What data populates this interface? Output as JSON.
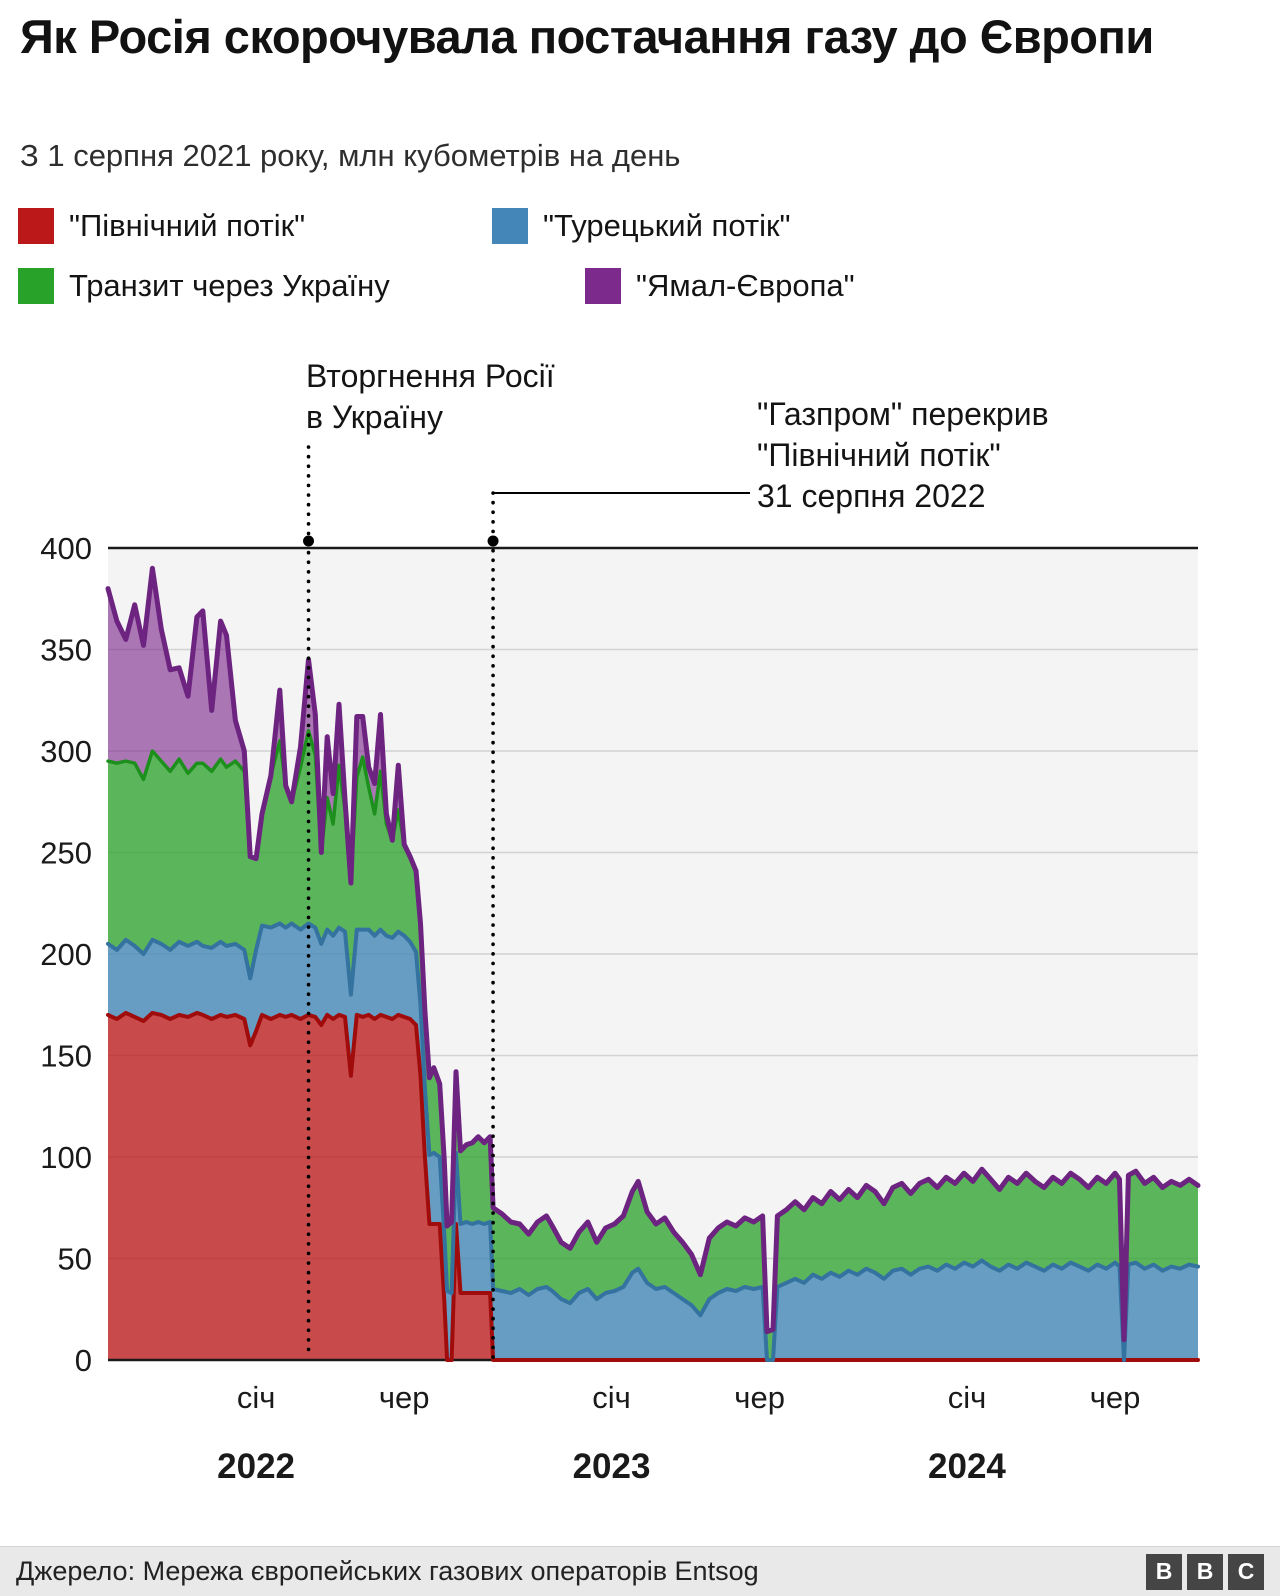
{
  "title": "Як Росія скорочувала постачання газу до Європи",
  "subtitle": "З 1 серпня 2021 року, млн кубометрів на день",
  "legend": [
    {
      "label": "\"Північний потік\"",
      "color": "#bb1919"
    },
    {
      "label": "\"Турецький потік\"",
      "color": "#4486b7"
    },
    {
      "label": "Транзит через Україну",
      "color": "#28a228"
    },
    {
      "label": "\"Ямал-Європа\"",
      "color": "#7c2a8c"
    }
  ],
  "annotations": {
    "invasion": {
      "line1": "Вторгнення Росії",
      "line2": "в Україну",
      "x_month": 6.77
    },
    "gazprom": {
      "line1": "\"Газпром\" перекрив",
      "line2": "\"Північний потік\"",
      "line3": "31 серпня 2022",
      "x_month": 13.0
    }
  },
  "footer": {
    "source": "Джерело: Мережа європейських газових операторів Entsog",
    "logo_letters": [
      "B",
      "B",
      "C"
    ]
  },
  "chart_data": {
    "type": "area",
    "stacked": true,
    "title": "Як Росія скорочувала постачання газу до Європи",
    "ylabel": "млн кубометрів на день",
    "x_unit": "months since 2021-08-01",
    "x_domain": [
      0,
      36.8
    ],
    "ylim": [
      0,
      400
    ],
    "y_ticks": [
      0,
      50,
      100,
      150,
      200,
      250,
      300,
      350,
      400
    ],
    "x_ticks": [
      {
        "label": "січ",
        "month": 5
      },
      {
        "label": "чер",
        "month": 10
      },
      {
        "label": "січ",
        "month": 17
      },
      {
        "label": "чер",
        "month": 22
      },
      {
        "label": "січ",
        "month": 29
      },
      {
        "label": "чер",
        "month": 34
      }
    ],
    "year_labels": [
      {
        "label": "2022",
        "month": 5
      },
      {
        "label": "2023",
        "month": 17
      },
      {
        "label": "2024",
        "month": 29
      }
    ],
    "grid": true,
    "legend_position": "top",
    "x": [
      0,
      0.3,
      0.6,
      0.9,
      1.2,
      1.5,
      1.8,
      2.1,
      2.4,
      2.7,
      3.0,
      3.2,
      3.5,
      3.8,
      4.0,
      4.3,
      4.6,
      4.8,
      5.0,
      5.2,
      5.5,
      5.8,
      6.0,
      6.2,
      6.5,
      6.77,
      7.0,
      7.2,
      7.4,
      7.6,
      7.8,
      8.0,
      8.2,
      8.4,
      8.6,
      8.8,
      9.0,
      9.2,
      9.4,
      9.6,
      9.8,
      10.0,
      10.2,
      10.4,
      10.55,
      10.7,
      10.85,
      11.0,
      11.2,
      11.35,
      11.45,
      11.6,
      11.75,
      11.9,
      12.1,
      12.3,
      12.5,
      12.7,
      12.9,
      13.0,
      13.3,
      13.6,
      13.9,
      14.2,
      14.5,
      14.8,
      15.0,
      15.3,
      15.6,
      15.9,
      16.2,
      16.5,
      16.8,
      17.1,
      17.4,
      17.7,
      17.9,
      18.2,
      18.5,
      18.8,
      19.1,
      19.4,
      19.7,
      20.0,
      20.3,
      20.6,
      20.9,
      21.2,
      21.5,
      21.8,
      22.1,
      22.25,
      22.45,
      22.6,
      22.9,
      23.2,
      23.5,
      23.8,
      24.1,
      24.4,
      24.7,
      25.0,
      25.3,
      25.6,
      25.9,
      26.2,
      26.5,
      26.8,
      27.1,
      27.4,
      27.7,
      28.0,
      28.3,
      28.6,
      28.9,
      29.2,
      29.5,
      29.8,
      30.1,
      30.4,
      30.7,
      31.0,
      31.3,
      31.6,
      31.9,
      32.2,
      32.5,
      32.8,
      33.1,
      33.4,
      33.7,
      34.0,
      34.15,
      34.3,
      34.45,
      34.7,
      35.0,
      35.3,
      35.6,
      35.9,
      36.2,
      36.5,
      36.8
    ],
    "series": [
      {
        "name": "\"Північний потік\"",
        "fill": "rgba(187,25,25,0.78)",
        "stroke": "#a00c0c",
        "stroke_width": 4,
        "values": [
          170,
          168,
          171,
          169,
          167,
          171,
          170,
          168,
          170,
          169,
          171,
          170,
          168,
          170,
          169,
          170,
          168,
          155,
          162,
          170,
          168,
          170,
          169,
          170,
          168,
          170,
          169,
          165,
          170,
          168,
          170,
          169,
          140,
          170,
          169,
          170,
          168,
          170,
          169,
          168,
          170,
          169,
          168,
          165,
          140,
          100,
          67,
          67,
          67,
          30,
          0,
          0,
          67,
          33,
          33,
          33,
          33,
          33,
          33,
          0,
          0,
          0,
          0,
          0,
          0,
          0,
          0,
          0,
          0,
          0,
          0,
          0,
          0,
          0,
          0,
          0,
          0,
          0,
          0,
          0,
          0,
          0,
          0,
          0,
          0,
          0,
          0,
          0,
          0,
          0,
          0,
          0,
          0,
          0,
          0,
          0,
          0,
          0,
          0,
          0,
          0,
          0,
          0,
          0,
          0,
          0,
          0,
          0,
          0,
          0,
          0,
          0,
          0,
          0,
          0,
          0,
          0,
          0,
          0,
          0,
          0,
          0,
          0,
          0,
          0,
          0,
          0,
          0,
          0,
          0,
          0,
          0,
          0,
          0,
          0,
          0,
          0,
          0,
          0,
          0,
          0,
          0,
          0
        ]
      },
      {
        "name": "\"Турецький потік\"",
        "fill": "rgba(68,134,183,0.8)",
        "stroke": "#34729f",
        "stroke_width": 4,
        "values": [
          35,
          34,
          36,
          35,
          33,
          36,
          35,
          34,
          36,
          35,
          35,
          34,
          35,
          36,
          35,
          35,
          34,
          33,
          40,
          44,
          45,
          45,
          44,
          45,
          44,
          45,
          44,
          40,
          42,
          41,
          43,
          42,
          40,
          42,
          43,
          42,
          41,
          42,
          40,
          40,
          41,
          40,
          38,
          36,
          35,
          34,
          34,
          35,
          33,
          33,
          34,
          33,
          35,
          34,
          35,
          34,
          35,
          34,
          35,
          35,
          34,
          33,
          35,
          32,
          35,
          36,
          34,
          30,
          28,
          33,
          35,
          30,
          33,
          34,
          36,
          43,
          45,
          38,
          35,
          36,
          33,
          30,
          27,
          22,
          30,
          33,
          35,
          34,
          36,
          35,
          36,
          0,
          0,
          36,
          38,
          40,
          38,
          42,
          40,
          43,
          41,
          44,
          42,
          45,
          43,
          40,
          44,
          45,
          42,
          45,
          46,
          44,
          47,
          45,
          48,
          46,
          49,
          46,
          44,
          47,
          45,
          48,
          46,
          44,
          47,
          45,
          48,
          46,
          44,
          47,
          45,
          48,
          46,
          0,
          47,
          48,
          45,
          47,
          44,
          46,
          45,
          47,
          46
        ]
      },
      {
        "name": "Транзит через Україну",
        "fill": "rgba(40,162,40,0.75)",
        "stroke": "#1d8f1d",
        "stroke_width": 3.5,
        "values": [
          90,
          92,
          88,
          90,
          86,
          93,
          90,
          88,
          90,
          85,
          88,
          90,
          87,
          90,
          88,
          90,
          88,
          60,
          45,
          55,
          75,
          90,
          70,
          60,
          80,
          95,
          85,
          45,
          65,
          55,
          80,
          60,
          55,
          75,
          85,
          70,
          60,
          78,
          55,
          48,
          60,
          45,
          42,
          40,
          40,
          38,
          38,
          42,
          36,
          36,
          32,
          35,
          40,
          36,
          38,
          40,
          42,
          40,
          42,
          40,
          38,
          35,
          32,
          30,
          33,
          35,
          32,
          28,
          27,
          30,
          33,
          28,
          32,
          33,
          35,
          40,
          43,
          35,
          32,
          34,
          30,
          28,
          25,
          20,
          30,
          32,
          33,
          32,
          34,
          33,
          35,
          14,
          15,
          35,
          36,
          38,
          36,
          38,
          37,
          40,
          38,
          40,
          38,
          41,
          40,
          37,
          41,
          42,
          40,
          42,
          43,
          41,
          43,
          42,
          44,
          42,
          45,
          43,
          40,
          43,
          42,
          44,
          42,
          41,
          43,
          42,
          44,
          43,
          41,
          43,
          42,
          44,
          43,
          10,
          44,
          45,
          42,
          43,
          41,
          42,
          41,
          42,
          40
        ]
      },
      {
        "name": "\"Ямал-Європа\"",
        "fill": "rgba(124,42,140,0.62)",
        "stroke": "#6d2380",
        "stroke_width": 5,
        "values": [
          85,
          70,
          60,
          78,
          66,
          90,
          65,
          50,
          45,
          38,
          72,
          75,
          30,
          68,
          65,
          20,
          10,
          0,
          0,
          0,
          0,
          25,
          0,
          0,
          10,
          35,
          20,
          0,
          30,
          15,
          30,
          5,
          0,
          30,
          20,
          10,
          15,
          28,
          5,
          0,
          22,
          0,
          0,
          0,
          0,
          0,
          0,
          0,
          0,
          0,
          0,
          0,
          0,
          0,
          0,
          0,
          0,
          0,
          0,
          0,
          0,
          0,
          0,
          0,
          0,
          0,
          0,
          0,
          0,
          0,
          0,
          0,
          0,
          0,
          0,
          0,
          0,
          0,
          0,
          0,
          0,
          0,
          0,
          0,
          0,
          0,
          0,
          0,
          0,
          0,
          0,
          0,
          0,
          0,
          0,
          0,
          0,
          0,
          0,
          0,
          0,
          0,
          0,
          0,
          0,
          0,
          0,
          0,
          0,
          0,
          0,
          0,
          0,
          0,
          0,
          0,
          0,
          0,
          0,
          0,
          0,
          0,
          0,
          0,
          0,
          0,
          0,
          0,
          0,
          0,
          0,
          0,
          0,
          0,
          0,
          0,
          0,
          0,
          0,
          0,
          0,
          0,
          0
        ]
      }
    ]
  }
}
